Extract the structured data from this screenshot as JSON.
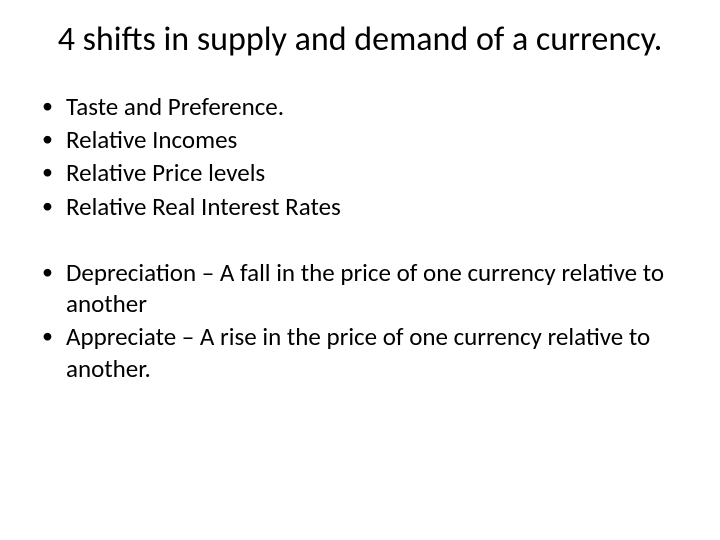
{
  "title": "4 shifts in supply and demand of a currency.",
  "group1": {
    "items": [
      "Taste and Preference.",
      "Relative Incomes",
      "Relative Price levels",
      "Relative Real Interest Rates"
    ]
  },
  "group2": {
    "items": [
      "Depreciation – A fall in the price of one currency relative to another",
      "Appreciate – A rise in the price of one currency relative to another."
    ]
  },
  "bullet_char": "•",
  "colors": {
    "background": "#ffffff",
    "text": "#000000"
  },
  "fonts": {
    "title_size": 34,
    "body_size": 25,
    "family": "Calibri"
  }
}
